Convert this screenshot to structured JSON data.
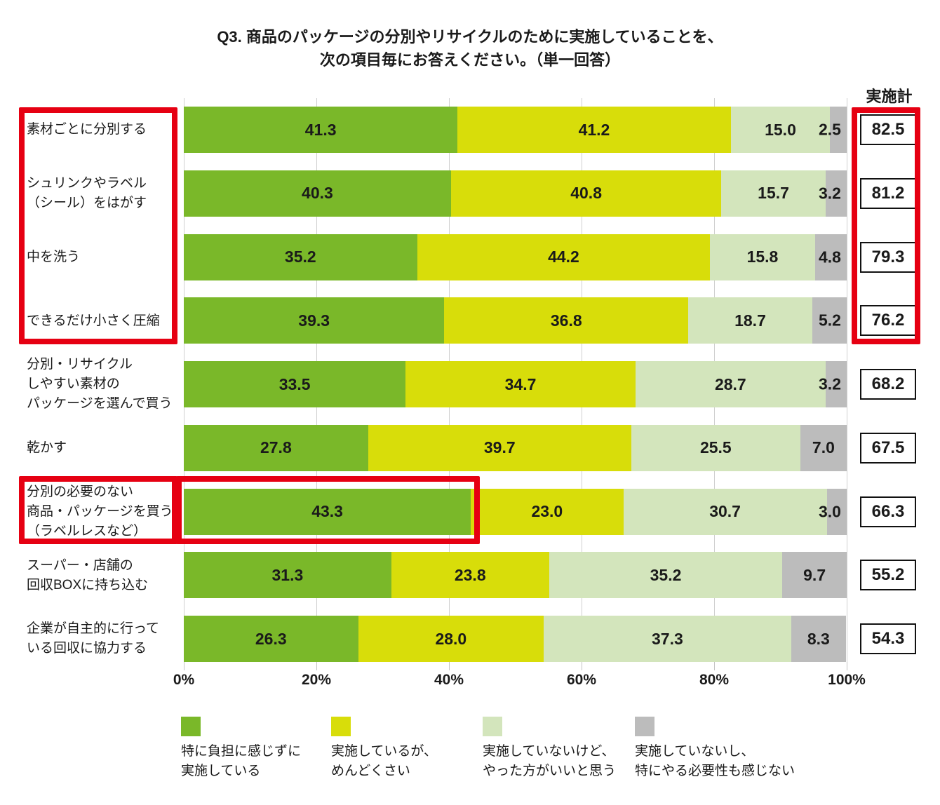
{
  "title": {
    "line1": "Q3. 商品のパッケージの分別やリサイクルのために実施していることを、",
    "line2": "次の項目毎にお答えください。（単一回答）"
  },
  "totals_header": "実施計",
  "chart_data": {
    "type": "bar",
    "stacked": true,
    "orientation": "horizontal",
    "unit": "%",
    "title": "Q3. 商品のパッケージの分別やリサイクルのために実施していることを、次の項目毎にお答えください。（単一回答）",
    "xlim": [
      0,
      100
    ],
    "x_ticks": [
      "0%",
      "20%",
      "40%",
      "60%",
      "80%",
      "100%"
    ],
    "grid": true,
    "legend_position": "bottom",
    "categories": [
      "素材ごとに分別する",
      "シュリンクやラベル\n（シール）をはがす",
      "中を洗う",
      "できるだけ小さく圧縮",
      "分別・リサイクル\nしやすい素材の\nパッケージを選んで買う",
      "乾かす",
      "分別の必要のない\n商品・パッケージを買う\n（ラベルレスなど）",
      "スーパー・店舗の\n回収BOXに持ち込む",
      "企業が自主的に行って\nいる回収に協力する"
    ],
    "series": [
      {
        "name": "特に負担に感じずに実施している",
        "legend_label": "特に負担に感じずに\n実施している",
        "color": "#7ab829",
        "values": [
          41.3,
          40.3,
          35.2,
          39.3,
          33.5,
          27.8,
          43.3,
          31.3,
          26.3
        ]
      },
      {
        "name": "実施しているが、めんどくさい",
        "legend_label": "実施しているが、\nめんどくさい",
        "color": "#d8dd0a",
        "values": [
          41.2,
          40.8,
          44.2,
          36.8,
          34.7,
          39.7,
          23.0,
          23.8,
          28.0
        ]
      },
      {
        "name": "実施していないけど、やった方がいいと思う",
        "legend_label": "実施していないけど、\nやった方がいいと思う",
        "color": "#d3e5bc",
        "values": [
          15.0,
          15.7,
          15.8,
          18.7,
          28.7,
          25.5,
          30.7,
          35.2,
          37.3
        ]
      },
      {
        "name": "実施していないし、特にやる必要性も感じない",
        "legend_label": "実施していないし、\n特にやる必要性も感じない",
        "color": "#bcbcbc",
        "values": [
          2.5,
          3.2,
          4.8,
          5.2,
          3.2,
          7.0,
          3.0,
          9.7,
          8.3
        ]
      }
    ],
    "totals": {
      "header": "実施計",
      "values": [
        82.5,
        81.2,
        79.3,
        76.2,
        68.2,
        67.5,
        66.3,
        55.2,
        54.3
      ]
    }
  },
  "annotations": {
    "highlight_color": "#e60012",
    "boxed_category_rows": [
      1,
      2,
      3,
      4
    ],
    "boxed_total_rows": [
      1,
      2,
      3,
      4
    ],
    "boxed_row7_label": "分別の必要のない 商品・パッケージを買う（ラベルレスなど）",
    "boxed_segment": {
      "row": 7,
      "segment": 1,
      "value": 43.3
    }
  }
}
